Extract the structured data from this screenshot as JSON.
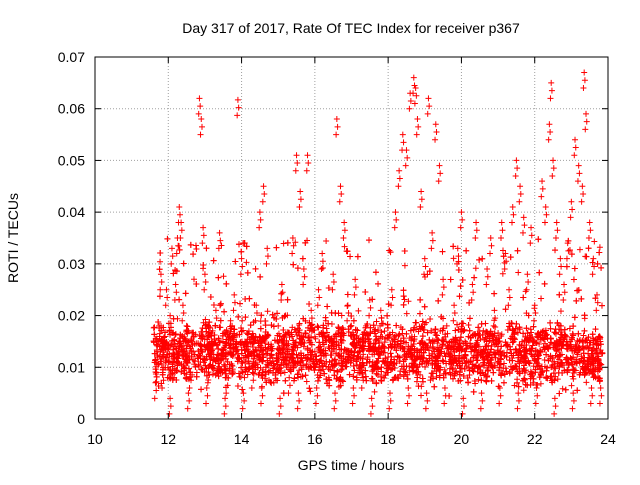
{
  "chart_data": {
    "type": "scatter",
    "title": "Day 317 of 2017, Rate Of TEC Index for receiver p367",
    "xlabel": "GPS time / hours",
    "ylabel": "ROTI / TECUs",
    "xlim": [
      10,
      24
    ],
    "ylim": [
      0,
      0.07
    ],
    "xticks": [
      10,
      12,
      14,
      16,
      18,
      20,
      22,
      24
    ],
    "xtick_labels": [
      "10",
      "12",
      "14",
      "16",
      "18",
      "20",
      "22",
      "24"
    ],
    "yticks": [
      0,
      0.01,
      0.02,
      0.03,
      0.04,
      0.05,
      0.06,
      0.07
    ],
    "ytick_labels": [
      "0",
      "0.01",
      "0.02",
      "0.03",
      "0.04",
      "0.05",
      "0.06",
      "0.07"
    ],
    "grid": true,
    "marker": "+",
    "color": "#ff0000",
    "series": [
      {
        "name": "p367",
        "points": [
          [
            11.65,
            0.007
          ],
          [
            11.7,
            0.012
          ],
          [
            11.75,
            0.018
          ],
          [
            11.8,
            0.028
          ],
          [
            11.85,
            0.009
          ],
          [
            11.9,
            0.015
          ],
          [
            11.95,
            0.025
          ],
          [
            12.0,
            0.011
          ],
          [
            12.05,
            0.02
          ],
          [
            12.1,
            0.033
          ],
          [
            12.15,
            0.014
          ],
          [
            12.2,
            0.026
          ],
          [
            12.25,
            0.035
          ],
          [
            12.3,
            0.041
          ],
          [
            12.35,
            0.038
          ],
          [
            12.4,
            0.022
          ],
          [
            12.45,
            0.013
          ],
          [
            12.5,
            0.018
          ],
          [
            12.6,
            0.009
          ],
          [
            12.7,
            0.016
          ],
          [
            12.8,
            0.012
          ],
          [
            12.85,
            0.062
          ],
          [
            12.9,
            0.058
          ],
          [
            12.95,
            0.037
          ],
          [
            13.0,
            0.028
          ],
          [
            13.1,
            0.01
          ],
          [
            13.2,
            0.015
          ],
          [
            13.3,
            0.021
          ],
          [
            13.4,
            0.036
          ],
          [
            13.5,
            0.012
          ],
          [
            13.6,
            0.008
          ],
          [
            13.7,
            0.019
          ],
          [
            13.8,
            0.024
          ],
          [
            13.9,
            0.0617
          ],
          [
            14.0,
            0.031
          ],
          [
            14.1,
            0.011
          ],
          [
            14.2,
            0.017
          ],
          [
            14.3,
            0.009
          ],
          [
            14.4,
            0.022
          ],
          [
            14.5,
            0.04
          ],
          [
            14.6,
            0.045
          ],
          [
            14.7,
            0.033
          ],
          [
            14.8,
            0.014
          ],
          [
            14.9,
            0.01
          ],
          [
            15.0,
            0.018
          ],
          [
            15.1,
            0.026
          ],
          [
            15.2,
            0.012
          ],
          [
            15.3,
            0.008
          ],
          [
            15.4,
            0.035
          ],
          [
            15.5,
            0.051
          ],
          [
            15.6,
            0.044
          ],
          [
            15.7,
            0.029
          ],
          [
            15.8,
            0.051
          ],
          [
            15.9,
            0.021
          ],
          [
            16.0,
            0.013
          ],
          [
            16.1,
            0.025
          ],
          [
            16.2,
            0.032
          ],
          [
            16.3,
            0.019
          ],
          [
            16.4,
            0.011
          ],
          [
            16.5,
            0.028
          ],
          [
            16.6,
            0.058
          ],
          [
            16.7,
            0.045
          ],
          [
            16.8,
            0.038
          ],
          [
            16.9,
            0.022
          ],
          [
            17.0,
            0.016
          ],
          [
            17.1,
            0.027
          ],
          [
            17.2,
            0.012
          ],
          [
            17.3,
            0.009
          ],
          [
            17.4,
            0.018
          ],
          [
            17.5,
            0.023
          ],
          [
            17.6,
            0.014
          ],
          [
            17.7,
            0.01
          ],
          [
            17.8,
            0.021
          ],
          [
            17.9,
            0.017
          ],
          [
            18.0,
            0.012
          ],
          [
            18.1,
            0.025
          ],
          [
            18.2,
            0.04
          ],
          [
            18.3,
            0.048
          ],
          [
            18.4,
            0.055
          ],
          [
            18.5,
            0.052
          ],
          [
            18.6,
            0.063
          ],
          [
            18.7,
            0.066
          ],
          [
            18.75,
            0.064
          ],
          [
            18.8,
            0.058
          ],
          [
            18.9,
            0.044
          ],
          [
            19.0,
            0.031
          ],
          [
            19.1,
            0.062
          ],
          [
            19.2,
            0.036
          ],
          [
            19.3,
            0.057
          ],
          [
            19.4,
            0.049
          ],
          [
            19.5,
            0.027
          ],
          [
            19.6,
            0.018
          ],
          [
            19.7,
            0.012
          ],
          [
            19.8,
            0.022
          ],
          [
            19.9,
            0.033
          ],
          [
            20.0,
            0.04
          ],
          [
            20.1,
            0.015
          ],
          [
            20.2,
            0.01
          ],
          [
            20.3,
            0.026
          ],
          [
            20.4,
            0.038
          ],
          [
            20.5,
            0.017
          ],
          [
            20.6,
            0.012
          ],
          [
            20.7,
            0.029
          ],
          [
            20.8,
            0.035
          ],
          [
            20.9,
            0.021
          ],
          [
            21.0,
            0.014
          ],
          [
            21.1,
            0.038
          ],
          [
            21.2,
            0.032
          ],
          [
            21.3,
            0.025
          ],
          [
            21.4,
            0.041
          ],
          [
            21.5,
            0.05
          ],
          [
            21.6,
            0.045
          ],
          [
            21.7,
            0.039
          ],
          [
            21.8,
            0.028
          ],
          [
            21.9,
            0.037
          ],
          [
            22.0,
            0.022
          ],
          [
            22.1,
            0.016
          ],
          [
            22.2,
            0.046
          ],
          [
            22.3,
            0.041
          ],
          [
            22.4,
            0.057
          ],
          [
            22.45,
            0.065
          ],
          [
            22.5,
            0.05
          ],
          [
            22.6,
            0.038
          ],
          [
            22.7,
            0.031
          ],
          [
            22.8,
            0.026
          ],
          [
            22.9,
            0.034
          ],
          [
            23.0,
            0.042
          ],
          [
            23.1,
            0.054
          ],
          [
            23.2,
            0.049
          ],
          [
            23.3,
            0.045
          ],
          [
            23.35,
            0.067
          ],
          [
            23.4,
            0.059
          ],
          [
            23.5,
            0.038
          ],
          [
            23.6,
            0.031
          ],
          [
            23.7,
            0.024
          ],
          [
            23.75,
            0.011
          ],
          [
            23.8,
            0.006
          ],
          [
            12.05,
            0.004
          ],
          [
            12.55,
            0.005
          ],
          [
            13.05,
            0.006
          ],
          [
            13.55,
            0.004
          ],
          [
            14.05,
            0.005
          ],
          [
            14.55,
            0.006
          ],
          [
            15.05,
            0.004
          ],
          [
            15.55,
            0.005
          ],
          [
            16.05,
            0.006
          ],
          [
            16.55,
            0.005
          ],
          [
            17.05,
            0.006
          ],
          [
            17.55,
            0.004
          ],
          [
            18.05,
            0.005
          ],
          [
            18.55,
            0.006
          ],
          [
            19.05,
            0.005
          ],
          [
            19.55,
            0.006
          ],
          [
            20.05,
            0.004
          ],
          [
            20.55,
            0.005
          ],
          [
            21.05,
            0.006
          ],
          [
            21.55,
            0.005
          ],
          [
            22.05,
            0.006
          ],
          [
            22.55,
            0.004
          ],
          [
            23.05,
            0.005
          ],
          [
            23.55,
            0.006
          ]
        ],
        "bulk": {
          "x_range": [
            11.6,
            23.85
          ],
          "typical_range": [
            0.004,
            0.022
          ],
          "spike_fraction": 0.06,
          "spike_range": [
            0.02,
            0.035
          ],
          "count": 4400
        }
      }
    ]
  }
}
